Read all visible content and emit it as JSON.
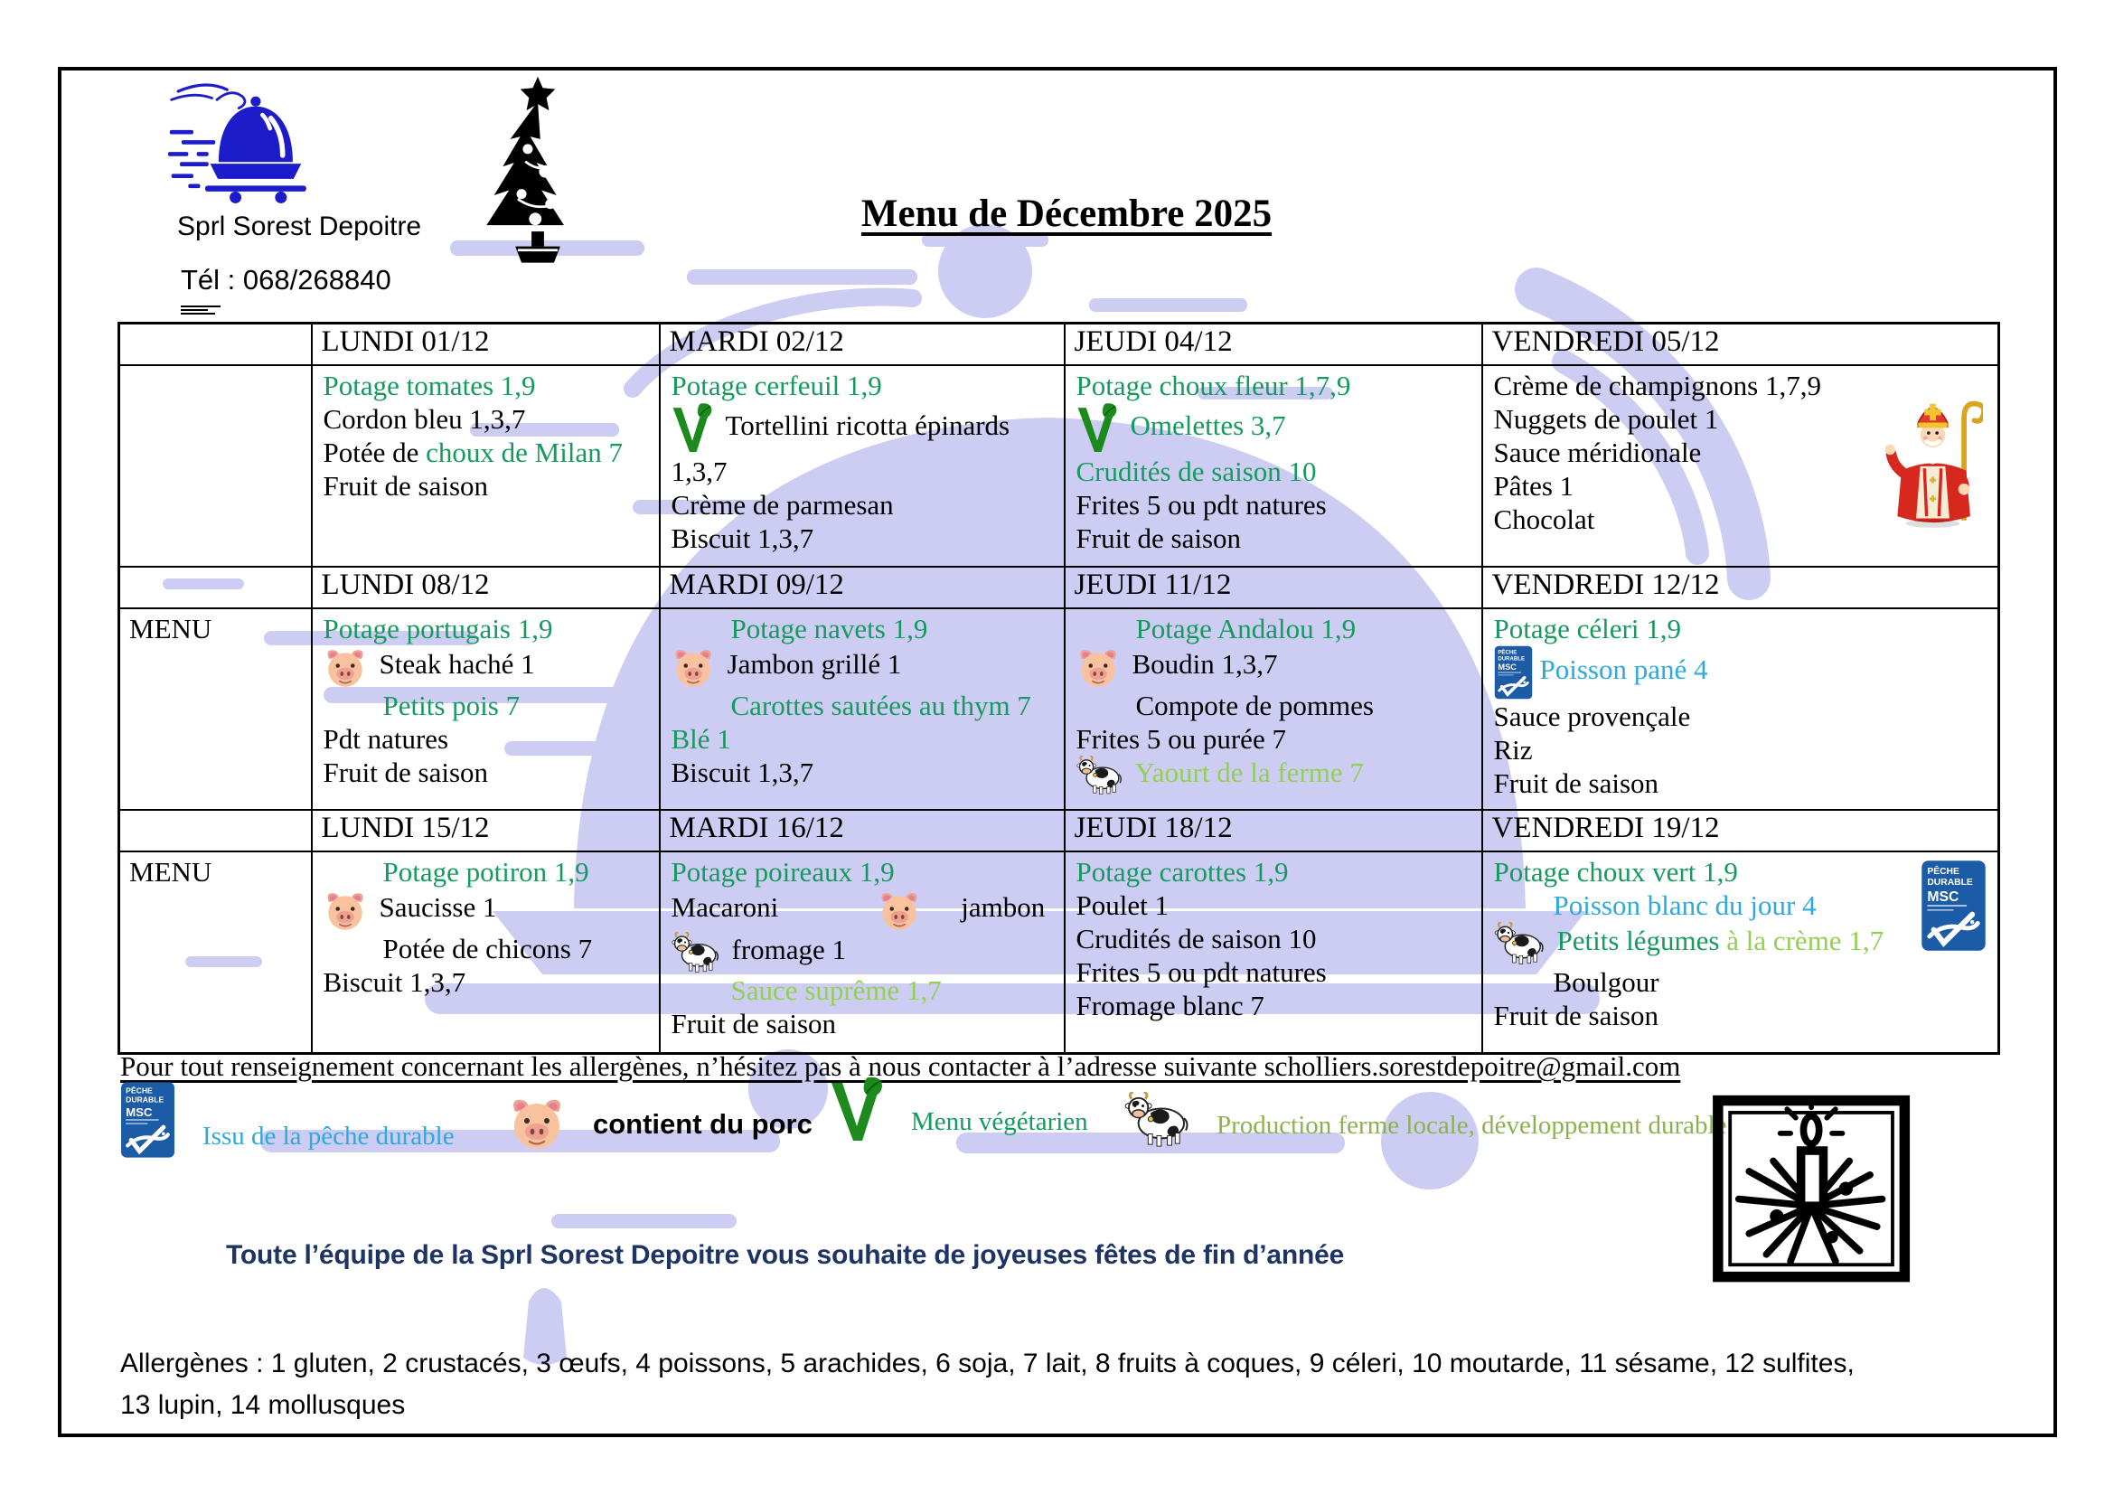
{
  "colors": {
    "green": "#169a5e",
    "light_green": "#92d050",
    "blue": "#2da9dd",
    "navy": "#1e3464",
    "msc_blue": "#1c5ba5",
    "logo_blue": "#1c1ccb",
    "watermark": "#cdcdf4",
    "black": "#000000",
    "olive_green": "#8cb14e"
  },
  "header": {
    "company": "Sprl Sorest Depoitre",
    "phone": "Tél : 068/268840",
    "title": "Menu de Décembre 2025"
  },
  "menu": {
    "weeks": [
      {
        "label": "",
        "days": [
          {
            "header": "LUNDI 01/12",
            "lines": [
              {
                "seg": [
                  {
                    "t": "Potage tomates 1,9",
                    "c": "green"
                  }
                ]
              },
              {
                "seg": [
                  {
                    "t": "Cordon bleu 1,3,7",
                    "c": "black"
                  }
                ]
              },
              {
                "seg": [
                  {
                    "t": "Potée de ",
                    "c": "black"
                  },
                  {
                    "t": "choux de Milan 7",
                    "c": "green"
                  }
                ]
              },
              {
                "seg": [
                  {
                    "t": "Fruit de saison",
                    "c": "black"
                  }
                ]
              }
            ]
          },
          {
            "header": "MARDI 02/12",
            "lines": [
              {
                "seg": [
                  {
                    "t": "Potage cerfeuil 1,9",
                    "c": "green"
                  }
                ]
              },
              {
                "icon": "veg",
                "isz": 58,
                "seg": [
                  {
                    "t": "Tortellini ricotta épinards 1,3,7",
                    "c": "black"
                  }
                ]
              },
              {
                "seg": [
                  {
                    "t": "Crème de parmesan",
                    "c": "black"
                  }
                ]
              },
              {
                "seg": [
                  {
                    "t": "Biscuit 1,3,7",
                    "c": "black"
                  }
                ]
              }
            ]
          },
          {
            "header": "JEUDI 04/12",
            "lines": [
              {
                "seg": [
                  {
                    "t": "Potage choux fleur 1,7,9",
                    "c": "green"
                  }
                ]
              },
              {
                "icon": "veg",
                "isz": 58,
                "seg": [
                  {
                    "t": "Omelettes 3,7",
                    "c": "green"
                  }
                ]
              },
              {
                "seg": [
                  {
                    "t": "Crudités de saison 10",
                    "c": "green"
                  }
                ]
              },
              {
                "seg": [
                  {
                    "t": "Frites 5 ou pdt natures",
                    "c": "black"
                  }
                ]
              },
              {
                "seg": [
                  {
                    "t": "Fruit de saison",
                    "c": "black"
                  }
                ]
              }
            ]
          },
          {
            "header": "VENDREDI 05/12",
            "side": "nicolas",
            "lines": [
              {
                "seg": [
                  {
                    "t": "Crème de champignons 1,7,9",
                    "c": "black"
                  }
                ]
              },
              {
                "seg": [
                  {
                    "t": "Nuggets de poulet 1",
                    "c": "black"
                  }
                ]
              },
              {
                "seg": [
                  {
                    "t": "Sauce méridionale",
                    "c": "black"
                  }
                ]
              },
              {
                "seg": [
                  {
                    "t": "Pâtes 1",
                    "c": "black"
                  }
                ]
              },
              {
                "seg": [
                  {
                    "t": "Chocolat",
                    "c": "black"
                  }
                ]
              }
            ]
          }
        ]
      },
      {
        "label": "MENU",
        "days": [
          {
            "header": "LUNDI 08/12",
            "lines": [
              {
                "seg": [
                  {
                    "t": "Potage portugais 1,9",
                    "c": "green"
                  }
                ]
              },
              {
                "icon": "pig",
                "isz": 48,
                "seg": [
                  {
                    "t": "Steak haché 1",
                    "c": "black"
                  }
                ]
              },
              {
                "pad": true,
                "seg": [
                  {
                    "t": "Petits pois 7",
                    "c": "green"
                  }
                ]
              },
              {
                "seg": [
                  {
                    "t": "Pdt natures",
                    "c": "black"
                  }
                ]
              },
              {
                "seg": [
                  {
                    "t": "Fruit de saison",
                    "c": "black"
                  }
                ]
              }
            ]
          },
          {
            "header": "MARDI 09/12",
            "lines": [
              {
                "pad": true,
                "seg": [
                  {
                    "t": "Potage navets 1,9",
                    "c": "green"
                  }
                ]
              },
              {
                "icon": "pig",
                "isz": 48,
                "seg": [
                  {
                    "t": "Jambon grillé 1",
                    "c": "black"
                  }
                ]
              },
              {
                "pad": true,
                "seg": [
                  {
                    "t": "Carottes sautées au thym 7",
                    "c": "green"
                  }
                ]
              },
              {
                "seg": [
                  {
                    "t": "Blé 1",
                    "c": "green"
                  }
                ]
              },
              {
                "seg": [
                  {
                    "t": "Biscuit 1,3,7",
                    "c": "black"
                  }
                ]
              }
            ]
          },
          {
            "header": "JEUDI 11/12",
            "lines": [
              {
                "pad": true,
                "seg": [
                  {
                    "t": "Potage Andalou 1,9",
                    "c": "green"
                  }
                ]
              },
              {
                "icon": "pig",
                "isz": 48,
                "seg": [
                  {
                    "t": "Boudin 1,3,7",
                    "c": "black"
                  }
                ]
              },
              {
                "pad": true,
                "seg": [
                  {
                    "t": "Compote de pommes",
                    "c": "black"
                  }
                ]
              },
              {
                "seg": [
                  {
                    "t": "Frites 5 ou purée 7",
                    "c": "black"
                  }
                ]
              },
              {
                "icon": "cow",
                "isz": 44,
                "seg": [
                  {
                    "t": "Yaourt de la ferme 7",
                    "c": "light_green"
                  }
                ]
              }
            ]
          },
          {
            "header": "VENDREDI 12/12",
            "lines": [
              {
                "seg": [
                  {
                    "t": "Potage céleri 1,9",
                    "c": "green"
                  }
                ]
              },
              {
                "icon": "msc",
                "isz": 60,
                "seg": [
                  {
                    "t": "Poisson pané 4",
                    "c": "blue"
                  }
                ]
              },
              {
                "seg": [
                  {
                    "t": "Sauce provençale",
                    "c": "black"
                  }
                ]
              },
              {
                "seg": [
                  {
                    "t": "Riz",
                    "c": "black"
                  }
                ]
              },
              {
                "seg": [
                  {
                    "t": "Fruit de saison",
                    "c": "black"
                  }
                ]
              }
            ]
          }
        ]
      },
      {
        "label": "MENU",
        "days": [
          {
            "header": "LUNDI 15/12",
            "lines": [
              {
                "pad": true,
                "seg": [
                  {
                    "t": "Potage potiron 1,9",
                    "c": "green"
                  }
                ]
              },
              {
                "icon": "pig",
                "isz": 48,
                "seg": [
                  {
                    "t": "Saucisse 1",
                    "c": "black"
                  }
                ]
              },
              {
                "pad": true,
                "seg": [
                  {
                    "t": "Potée de chicons 7",
                    "c": "black"
                  }
                ]
              },
              {
                "seg": [
                  {
                    "t": "Biscuit 1,3,7",
                    "c": "black"
                  }
                ]
              }
            ]
          },
          {
            "header": "MARDI 16/12",
            "lines": [
              {
                "seg": [
                  {
                    "t": "Potage poireaux 1,9",
                    "c": "green"
                  }
                ]
              },
              {
                "seg": [
                  {
                    "t": "Macaroni",
                    "c": "black"
                  },
                  {
                    "sp": 110
                  },
                  {
                    "ic": "pig",
                    "isz": 48
                  },
                  {
                    "sp": 30
                  },
                  {
                    "t": "jambon",
                    "c": "black"
                  }
                ]
              },
              {
                "icon": "cow",
                "isz": 46,
                "seg": [
                  {
                    "t": "fromage 1",
                    "c": "black"
                  }
                ]
              },
              {
                "pad": true,
                "seg": [
                  {
                    "t": "Sauce suprême 1,7",
                    "c": "light_green"
                  }
                ]
              },
              {
                "seg": [
                  {
                    "t": "Fruit de saison",
                    "c": "black"
                  }
                ]
              }
            ]
          },
          {
            "header": "JEUDI 18/12",
            "lines": [
              {
                "seg": [
                  {
                    "t": "Potage carottes 1,9",
                    "c": "green"
                  }
                ]
              },
              {
                "seg": [
                  {
                    "t": "Poulet 1",
                    "c": "black"
                  }
                ]
              },
              {
                "seg": [
                  {
                    "t": "Crudités de saison 10",
                    "c": "black"
                  }
                ]
              },
              {
                "seg": [
                  {
                    "t": "Frites 5 ou pdt natures",
                    "c": "black"
                  }
                ]
              },
              {
                "seg": [
                  {
                    "t": "Fromage blanc 7",
                    "c": "black"
                  }
                ]
              }
            ]
          },
          {
            "header": "VENDREDI 19/12",
            "side": "msc",
            "lines": [
              {
                "seg": [
                  {
                    "t": "Potage choux vert 1,9",
                    "c": "green"
                  }
                ]
              },
              {
                "pad": true,
                "seg": [
                  {
                    "t": "Poisson blanc du jour 4",
                    "c": "blue"
                  }
                ]
              },
              {
                "icon": "cow",
                "isz": 48,
                "seg": [
                  {
                    "t": "Petits légumes ",
                    "c": "green"
                  },
                  {
                    "t": "à la crème 1,7",
                    "c": "light_green"
                  }
                ]
              },
              {
                "pad": true,
                "seg": [
                  {
                    "t": "Boulgour",
                    "c": "black"
                  }
                ]
              },
              {
                "seg": [
                  {
                    "t": "Fruit de saison",
                    "c": "black"
                  }
                ]
              }
            ]
          }
        ]
      }
    ]
  },
  "footer": {
    "contact_line": "Pour tout renseignement concernant les allergènes, n’hésitez pas à nous contacter à l’adresse suivante scholliers.sorestdepoitre@gmail.com",
    "legend": [
      {
        "icon": "msc",
        "isz": 86,
        "label": "Issu de la pêche durable",
        "color": "#2da9dd"
      },
      {
        "icon": "pig",
        "isz": 64,
        "label": "contient du porc",
        "color": "#000000",
        "sans": true
      },
      {
        "icon": "veg",
        "isz": 76,
        "label": "Menu végétarien",
        "color": "#169a5e"
      },
      {
        "icon": "cow",
        "isz": 62,
        "label": "Production ferme locale, développement durable",
        "color": "#8cb14e"
      }
    ],
    "closing": "Toute l’équipe de la Sprl Sorest Depoitre vous souhaite de joyeuses fêtes de fin d’année",
    "allergens": "Allergènes : 1 gluten, 2 crustacés, 3 œufs, 4 poissons, 5 arachides, 6 soja, 7 lait, 8 fruits à coques, 9 céleri, 10 moutarde, 11 sésame, 12 sulfites, 13 lupin, 14 mollusques"
  },
  "icons": {
    "msc_text": [
      "PÊCHE",
      "DURABLE",
      "MSC"
    ]
  }
}
